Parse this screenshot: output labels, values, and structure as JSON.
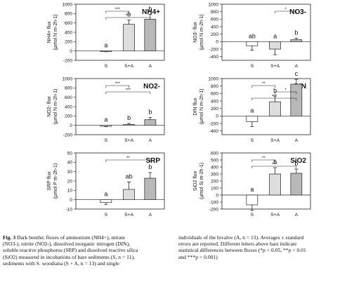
{
  "chart_data": [
    {
      "type": "bar",
      "panel_label": "NH4+",
      "ylabel": "NH4+ flux (µmol N m-2h-1)",
      "categories": [
        "S",
        "S+A",
        "A"
      ],
      "values": [
        -10,
        570,
        680
      ],
      "errors": [
        8,
        90,
        100
      ],
      "letters": [
        "a",
        "b",
        "b"
      ],
      "ylim": [
        -200,
        1000
      ],
      "yticks": [
        "1000",
        "800",
        "600",
        "400",
        "200",
        "0",
        "-200"
      ],
      "brackets": [
        {
          "from": 0,
          "to": 1,
          "label": "***"
        },
        {
          "from": 0,
          "to": 2,
          "label": "***"
        }
      ]
    },
    {
      "type": "bar",
      "panel_label": "NO3-",
      "ylabel": "NO3- flux (µmol N m-2h-1)",
      "categories": [
        "S",
        "S+A",
        "A"
      ],
      "values": [
        -110,
        -200,
        50
      ],
      "errors": [
        120,
        150,
        40
      ],
      "letters": [
        "ab",
        "a",
        "b"
      ],
      "ylim": [
        -500,
        1000
      ],
      "yticks": [
        "1000",
        "800",
        "600",
        "400",
        "200",
        "0",
        "-200",
        "-400"
      ],
      "brackets": [
        {
          "from": 1,
          "to": 2,
          "label": "*"
        }
      ]
    },
    {
      "type": "bar",
      "panel_label": "NO2-",
      "ylabel": "NO2- flux (µmol N m-2h-1)",
      "categories": [
        "S",
        "S+A",
        "A"
      ],
      "values": [
        -20,
        20,
        120
      ],
      "errors": [
        10,
        20,
        50
      ],
      "letters": [
        "a",
        "b",
        "b"
      ],
      "ylim": [
        -200,
        1000
      ],
      "yticks": [
        "1000",
        "800",
        "600",
        "400",
        "200",
        "0",
        "-200"
      ],
      "brackets": [
        {
          "from": 0,
          "to": 1,
          "label": "***"
        },
        {
          "from": 0,
          "to": 2,
          "label": "***"
        }
      ]
    },
    {
      "type": "bar",
      "panel_label": "DIN",
      "ylabel": "DIN flux (µmol N m-2h-1)",
      "categories": [
        "S",
        "S+A",
        "A"
      ],
      "values": [
        -150,
        380,
        850
      ],
      "errors": [
        130,
        150,
        130
      ],
      "letters": [
        "a",
        "b",
        "c"
      ],
      "ylim": [
        -500,
        1000
      ],
      "yticks": [
        "1000",
        "800",
        "600",
        "400",
        "200",
        "0",
        "-200",
        "-400"
      ],
      "brackets": [
        {
          "from": 0,
          "to": 1,
          "label": "**"
        },
        {
          "from": 1,
          "to": 2,
          "label": "*"
        },
        {
          "from": 0,
          "to": 2,
          "label": "***"
        }
      ]
    },
    {
      "type": "bar",
      "panel_label": "SRP",
      "ylabel": "SRP flux (µmol P m-2h-1)",
      "categories": [
        "S",
        "S+A",
        "A"
      ],
      "values": [
        -3,
        11,
        23
      ],
      "errors": [
        2,
        8,
        6
      ],
      "letters": [
        "a",
        "ab",
        "b"
      ],
      "ylim": [
        -10,
        50
      ],
      "yticks": [
        "50",
        "40",
        "30",
        "20",
        "10",
        "0",
        "-10"
      ],
      "brackets": [
        {
          "from": 0,
          "to": 2,
          "label": "**"
        }
      ]
    },
    {
      "type": "bar",
      "panel_label": "SiO2",
      "ylabel": "SiO2 flux (µmol Si m-2h-1)",
      "categories": [
        "S",
        "S+A",
        "A"
      ],
      "values": [
        -140,
        300,
        310
      ],
      "errors": [
        80,
        90,
        60
      ],
      "letters": [
        "a",
        "b",
        "b"
      ],
      "ylim": [
        -200,
        600
      ],
      "yticks": [
        "600",
        "500",
        "400",
        "300",
        "200",
        "100",
        "0",
        "-100",
        "-200"
      ],
      "brackets": [
        {
          "from": 0,
          "to": 1,
          "label": "**"
        },
        {
          "from": 0,
          "to": 2,
          "label": "***"
        }
      ]
    }
  ],
  "bar_colors": [
    "#ffffff",
    "#dddddd",
    "#b8b8b8"
  ],
  "caption": {
    "left_lines": [
      "Fig. 3 Dark benthic fluxes of ammonium (NH4+), nitrate",
      "(NO3-), nitrite (NO2-), dissolved inorganic nitrogen (DIN),",
      "soluble reactive phosphorus (SRP) and dissolved reactive silica",
      "(SiO2) measured in incubations of bare sediments (S, n = 11),",
      "sediments with S. woodiana (S + A, n = 13) and single"
    ],
    "right_lines": [
      "individuals of the bivalve (A, n = 13). Averages ± standard",
      "errors are reported. Different letters above bars indicate",
      "statistical differences between fluxes (*p < 0.05, **p < 0.01",
      "and ***p < 0.001)"
    ]
  }
}
